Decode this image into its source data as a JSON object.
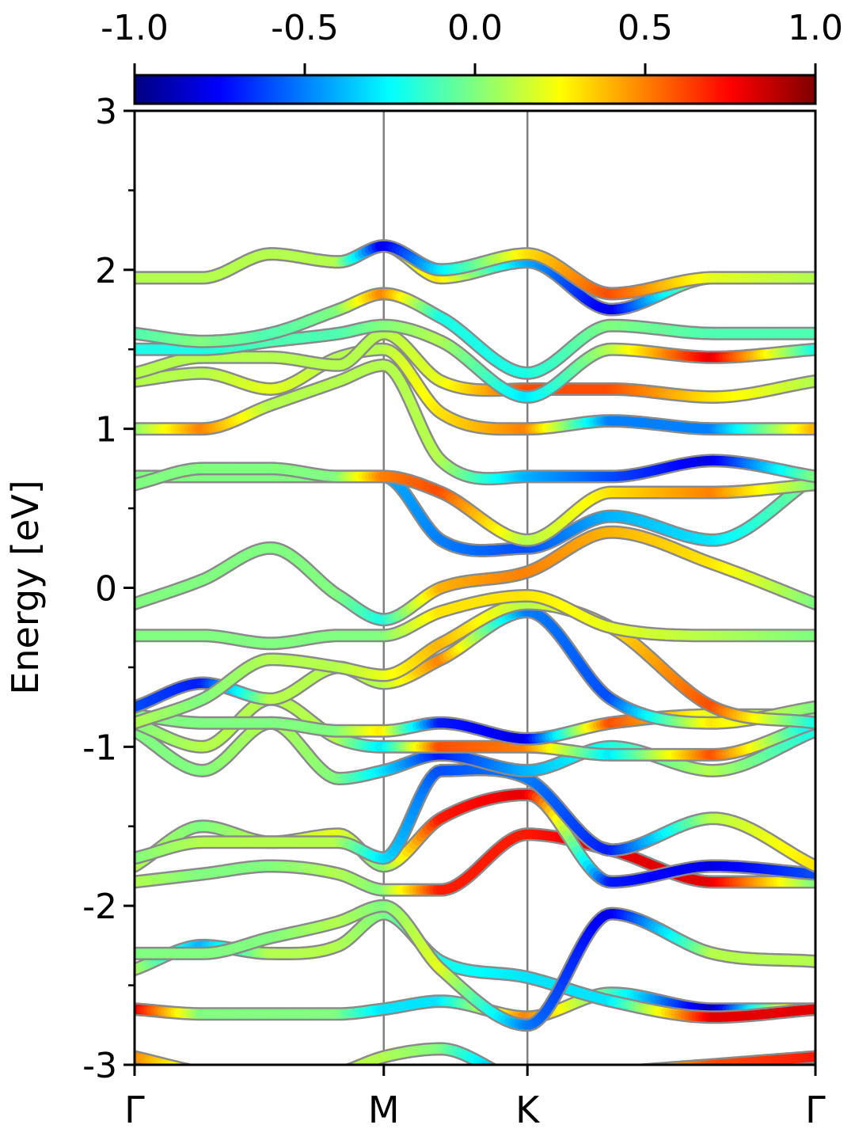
{
  "chart_data": {
    "type": "line",
    "title": "",
    "ylabel": "Energy [eV]",
    "xlabel": "",
    "ylim": [
      -3,
      3
    ],
    "xlim": [
      0,
      1
    ],
    "grid": false,
    "yticks": [
      {
        "value": -3,
        "label": "-3"
      },
      {
        "value": -2,
        "label": "-2"
      },
      {
        "value": -1,
        "label": "-1"
      },
      {
        "value": 0,
        "label": "0"
      },
      {
        "value": 1,
        "label": "1"
      },
      {
        "value": 2,
        "label": "2"
      },
      {
        "value": 3,
        "label": "3"
      }
    ],
    "yminor": [
      -2.5,
      -1.5,
      -0.5,
      0.5,
      1.5,
      2.5
    ],
    "kpoints": [
      {
        "label": "Γ",
        "x": 0.0
      },
      {
        "label": "M",
        "x": 0.366
      },
      {
        "label": "K",
        "x": 0.577
      },
      {
        "label": "Γ",
        "x": 1.0
      }
    ],
    "colorbar": {
      "colormap": "jet",
      "min": -1.0,
      "max": 1.0,
      "ticks": [
        {
          "value": -1.0,
          "label": "-1.0"
        },
        {
          "value": -0.5,
          "label": "-0.5"
        },
        {
          "value": 0.0,
          "label": "0.0"
        },
        {
          "value": 0.5,
          "label": "0.5"
        },
        {
          "value": 1.0,
          "label": "1.0"
        }
      ]
    },
    "bands": [
      {
        "x": [
          0,
          0.1,
          0.2,
          0.3,
          0.366,
          0.45,
          0.577,
          0.7,
          0.85,
          1.0
        ],
        "y": [
          -2.95,
          -3.05,
          -3.1,
          -3.05,
          -2.95,
          -2.9,
          -3.1,
          -3.05,
          -3.0,
          -2.95
        ],
        "c": [
          0.5,
          0.1,
          0.0,
          0.1,
          0.1,
          0.0,
          -0.6,
          0.1,
          0.6,
          0.7
        ]
      },
      {
        "x": [
          0,
          0.1,
          0.2,
          0.3,
          0.366,
          0.45,
          0.577,
          0.7,
          0.85,
          1.0
        ],
        "y": [
          -2.65,
          -2.68,
          -2.68,
          -2.68,
          -2.65,
          -2.6,
          -2.7,
          -2.55,
          -2.65,
          -2.65
        ],
        "c": [
          0.8,
          0.0,
          0.0,
          0.0,
          -0.3,
          -0.3,
          0.5,
          -0.1,
          -0.9,
          0.7
        ]
      },
      {
        "x": [
          0,
          0.1,
          0.2,
          0.3,
          0.366,
          0.45,
          0.577,
          0.7,
          0.85,
          1.0
        ],
        "y": [
          -2.4,
          -2.25,
          -2.3,
          -2.25,
          -2.05,
          -2.35,
          -2.45,
          -2.6,
          -2.7,
          -2.65
        ],
        "c": [
          0.1,
          -0.4,
          0.1,
          0.1,
          0.0,
          -0.2,
          -0.3,
          -0.3,
          0.8,
          0.8
        ]
      },
      {
        "x": [
          0,
          0.1,
          0.2,
          0.3,
          0.366,
          0.45,
          0.577,
          0.7,
          0.85,
          1.0
        ],
        "y": [
          -2.3,
          -2.3,
          -2.2,
          -2.1,
          -2.0,
          -2.4,
          -2.75,
          -2.05,
          -2.3,
          -2.35
        ],
        "c": [
          0.0,
          0.0,
          0.0,
          0.1,
          0.0,
          0.2,
          -0.5,
          -0.8,
          0.1,
          0.1
        ]
      },
      {
        "x": [
          0,
          0.1,
          0.2,
          0.3,
          0.366,
          0.45,
          0.577,
          0.7,
          0.85,
          1.0
        ],
        "y": [
          -1.85,
          -1.8,
          -1.75,
          -1.8,
          -1.9,
          -1.9,
          -1.55,
          -1.65,
          -1.85,
          -1.85
        ],
        "c": [
          0.1,
          0.0,
          0.0,
          0.1,
          0.0,
          0.7,
          0.7,
          0.8,
          0.8,
          0.0
        ]
      },
      {
        "x": [
          0,
          0.1,
          0.2,
          0.3,
          0.366,
          0.45,
          0.577,
          0.7,
          0.85,
          1.0
        ],
        "y": [
          -1.75,
          -1.5,
          -1.6,
          -1.55,
          -1.75,
          -1.45,
          -1.3,
          -1.85,
          -1.75,
          -1.8
        ],
        "c": [
          0.1,
          0.0,
          0.1,
          0.2,
          0.0,
          0.7,
          0.8,
          -0.7,
          -0.8,
          -0.6
        ]
      },
      {
        "x": [
          0,
          0.1,
          0.2,
          0.3,
          0.366,
          0.45,
          0.577,
          0.7,
          0.85,
          1.0
        ],
        "y": [
          -1.7,
          -1.6,
          -1.6,
          -1.6,
          -1.7,
          -1.15,
          -1.2,
          -1.65,
          -1.45,
          -1.75
        ],
        "c": [
          0.0,
          0.1,
          0.1,
          0.1,
          -0.3,
          -0.6,
          -0.5,
          -0.7,
          0.1,
          0.3
        ]
      },
      {
        "x": [
          0,
          0.1,
          0.2,
          0.3,
          0.366,
          0.45,
          0.577,
          0.7,
          0.85,
          1.0
        ],
        "y": [
          -0.9,
          -1.15,
          -0.85,
          -1.2,
          -1.15,
          -1.05,
          -1.15,
          -1.0,
          -1.15,
          -0.9
        ],
        "c": [
          0.0,
          0.0,
          0.1,
          0.0,
          -0.3,
          -0.7,
          -0.4,
          -0.2,
          0.1,
          -0.2
        ]
      },
      {
        "x": [
          0,
          0.1,
          0.2,
          0.3,
          0.366,
          0.45,
          0.577,
          0.7,
          0.85,
          1.0
        ],
        "y": [
          -0.85,
          -1.0,
          -0.7,
          -0.95,
          -1.0,
          -1.0,
          -1.0,
          -1.05,
          -1.05,
          -0.85
        ],
        "c": [
          0.0,
          0.1,
          0.1,
          0.1,
          -0.3,
          0.6,
          0.5,
          -0.3,
          0.6,
          -0.3
        ]
      },
      {
        "x": [
          0,
          0.1,
          0.2,
          0.3,
          0.366,
          0.45,
          0.577,
          0.7,
          0.85,
          1.0
        ],
        "y": [
          -0.8,
          -0.85,
          -0.85,
          -0.9,
          -0.9,
          -0.85,
          -0.95,
          -0.85,
          -0.8,
          -0.8
        ],
        "c": [
          0.0,
          0.0,
          0.0,
          0.0,
          0.3,
          -0.7,
          -0.8,
          0.6,
          0.2,
          0.0
        ]
      },
      {
        "x": [
          0,
          0.1,
          0.2,
          0.3,
          0.366,
          0.45,
          0.577,
          0.7,
          0.85,
          1.0
        ],
        "y": [
          -0.75,
          -0.6,
          -0.7,
          -0.5,
          -0.6,
          -0.45,
          -0.15,
          -0.7,
          -0.85,
          -0.75
        ],
        "c": [
          -0.6,
          -0.7,
          0.1,
          0.1,
          0.1,
          0.5,
          -0.5,
          -0.6,
          0.3,
          0.0
        ]
      },
      {
        "x": [
          0,
          0.1,
          0.2,
          0.3,
          0.366,
          0.45,
          0.577,
          0.7,
          0.85,
          1.0
        ],
        "y": [
          -0.85,
          -0.7,
          -0.45,
          -0.5,
          -0.55,
          -0.35,
          -0.1,
          -0.25,
          -0.75,
          -0.85
        ],
        "c": [
          0.1,
          0.0,
          0.1,
          0.1,
          0.2,
          0.4,
          0.1,
          0.3,
          0.6,
          -0.2
        ]
      },
      {
        "x": [
          0,
          0.1,
          0.2,
          0.3,
          0.366,
          0.45,
          0.577,
          0.7,
          0.85,
          1.0
        ],
        "y": [
          -0.3,
          -0.3,
          -0.35,
          -0.3,
          -0.3,
          -0.15,
          -0.05,
          -0.25,
          -0.3,
          -0.3
        ],
        "c": [
          0.0,
          0.0,
          0.0,
          0.0,
          0.0,
          0.3,
          0.3,
          0.2,
          0.1,
          0.0
        ]
      },
      {
        "x": [
          0,
          0.1,
          0.2,
          0.3,
          0.366,
          0.45,
          0.577,
          0.7,
          0.85,
          1.0
        ],
        "y": [
          -0.1,
          0.05,
          0.25,
          -0.05,
          -0.2,
          0.0,
          0.1,
          0.35,
          0.15,
          -0.1
        ],
        "c": [
          0.0,
          0.0,
          0.0,
          0.0,
          -0.2,
          0.4,
          0.5,
          0.4,
          0.3,
          0.0
        ]
      },
      {
        "x": [
          0,
          0.1,
          0.2,
          0.3,
          0.366,
          0.45,
          0.577,
          0.7,
          0.85,
          1.0
        ],
        "y": [
          0.7,
          0.7,
          0.7,
          0.7,
          0.7,
          0.3,
          0.25,
          0.45,
          0.3,
          0.7
        ],
        "c": [
          0.0,
          0.0,
          0.0,
          0.0,
          -0.4,
          -0.5,
          -0.6,
          -0.4,
          -0.3,
          0.0
        ]
      },
      {
        "x": [
          0,
          0.1,
          0.2,
          0.3,
          0.366,
          0.45,
          0.577,
          0.7,
          0.85,
          1.0
        ],
        "y": [
          0.65,
          0.75,
          0.75,
          0.7,
          0.7,
          0.6,
          0.3,
          0.6,
          0.6,
          0.65
        ],
        "c": [
          0.0,
          0.0,
          0.0,
          0.0,
          0.5,
          0.6,
          0.1,
          0.3,
          0.5,
          0.0
        ]
      },
      {
        "x": [
          0,
          0.1,
          0.2,
          0.3,
          0.366,
          0.45,
          0.577,
          0.7,
          0.85,
          1.0
        ],
        "y": [
          1.0,
          1.0,
          1.15,
          1.3,
          1.4,
          0.8,
          0.7,
          0.7,
          0.8,
          0.7
        ],
        "c": [
          0.0,
          0.5,
          0.1,
          0.1,
          0.1,
          0.1,
          -0.4,
          -0.6,
          -0.8,
          0.0
        ]
      },
      {
        "x": [
          0,
          0.1,
          0.2,
          0.3,
          0.366,
          0.45,
          0.577,
          0.7,
          0.85,
          1.0
        ],
        "y": [
          1.3,
          1.35,
          1.25,
          1.45,
          1.5,
          1.1,
          1.0,
          1.05,
          1.0,
          1.0
        ],
        "c": [
          0.1,
          0.1,
          0.2,
          0.1,
          0.1,
          0.3,
          0.5,
          -0.5,
          -0.5,
          0.4
        ]
      },
      {
        "x": [
          0,
          0.1,
          0.2,
          0.3,
          0.366,
          0.45,
          0.577,
          0.7,
          0.85,
          1.0
        ],
        "y": [
          1.35,
          1.45,
          1.45,
          1.4,
          1.6,
          1.3,
          1.25,
          1.25,
          1.2,
          1.3
        ],
        "c": [
          0.1,
          0.1,
          0.1,
          0.1,
          0.1,
          0.2,
          0.6,
          0.6,
          0.3,
          0.1
        ]
      },
      {
        "x": [
          0,
          0.1,
          0.2,
          0.3,
          0.366,
          0.45,
          0.577,
          0.7,
          0.85,
          1.0
        ],
        "y": [
          1.5,
          1.5,
          1.55,
          1.6,
          1.65,
          1.55,
          1.2,
          1.5,
          1.45,
          1.5
        ],
        "c": [
          -0.2,
          -0.2,
          -0.1,
          -0.1,
          0.0,
          0.1,
          -0.3,
          0.1,
          0.8,
          -0.2
        ]
      },
      {
        "x": [
          0,
          0.1,
          0.2,
          0.3,
          0.366,
          0.45,
          0.577,
          0.7,
          0.85,
          1.0
        ],
        "y": [
          1.6,
          1.55,
          1.6,
          1.75,
          1.85,
          1.7,
          1.35,
          1.65,
          1.6,
          1.6
        ],
        "c": [
          -0.1,
          0.0,
          -0.1,
          0.0,
          0.5,
          -0.2,
          -0.2,
          0.0,
          -0.1,
          -0.1
        ]
      },
      {
        "x": [
          0,
          0.1,
          0.2,
          0.3,
          0.366,
          0.45,
          0.577,
          0.7,
          0.85,
          1.0
        ],
        "y": [
          1.95,
          1.95,
          2.1,
          2.05,
          2.15,
          1.95,
          2.05,
          1.75,
          1.95,
          1.95
        ],
        "c": [
          0.1,
          0.1,
          0.1,
          0.1,
          0.1,
          0.3,
          -0.4,
          -0.8,
          0.2,
          0.2
        ]
      },
      {
        "x": [
          0,
          0.1,
          0.2,
          0.3,
          0.366,
          0.45,
          0.577,
          0.7,
          0.85,
          1.0
        ],
        "y": [
          1.95,
          1.95,
          2.1,
          2.05,
          2.15,
          2.0,
          2.1,
          1.85,
          1.95,
          1.95
        ],
        "c": [
          0.1,
          0.1,
          0.1,
          0.1,
          -0.8,
          -0.3,
          0.3,
          0.6,
          0.2,
          0.1
        ]
      }
    ]
  }
}
